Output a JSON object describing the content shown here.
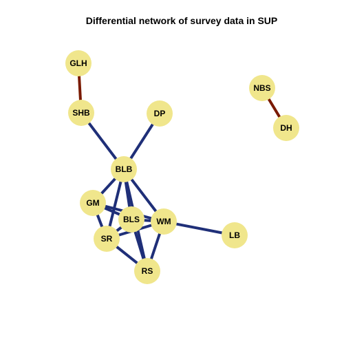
{
  "title": "Differential network of survey data in SUP",
  "colors": {
    "node_fill": "#F0E68C",
    "negative_edge": "#1F2F78",
    "positive_edge": "#7A1A00"
  },
  "nodes": [
    {
      "id": "GLH",
      "label": "GLH"
    },
    {
      "id": "SHB",
      "label": "SHB"
    },
    {
      "id": "DP",
      "label": "DP"
    },
    {
      "id": "NBS",
      "label": "NBS"
    },
    {
      "id": "DH",
      "label": "DH"
    },
    {
      "id": "BLB",
      "label": "BLB"
    },
    {
      "id": "GM",
      "label": "GM"
    },
    {
      "id": "BLS",
      "label": "BLS"
    },
    {
      "id": "WM",
      "label": "WM"
    },
    {
      "id": "LB",
      "label": "LB"
    },
    {
      "id": "SR",
      "label": "SR"
    },
    {
      "id": "RS",
      "label": "RS"
    }
  ],
  "edges": [
    {
      "source": "GLH",
      "target": "SHB",
      "color": "#7A1A00"
    },
    {
      "source": "NBS",
      "target": "DH",
      "color": "#7A1A00"
    },
    {
      "source": "SHB",
      "target": "BLB",
      "color": "#1F2F78"
    },
    {
      "source": "DP",
      "target": "BLB",
      "color": "#1F2F78"
    },
    {
      "source": "BLB",
      "target": "GM",
      "color": "#1F2F78"
    },
    {
      "source": "BLB",
      "target": "SR",
      "color": "#1F2F78"
    },
    {
      "source": "BLB",
      "target": "RS",
      "color": "#1F2F78"
    },
    {
      "source": "BLB",
      "target": "WM",
      "color": "#1F2F78"
    },
    {
      "source": "BLB",
      "target": "BLS",
      "color": "#1F2F78"
    },
    {
      "source": "GM",
      "target": "BLS",
      "color": "#1F2F78"
    },
    {
      "source": "GM",
      "target": "WM",
      "color": "#1F2F78"
    },
    {
      "source": "GM",
      "target": "SR",
      "color": "#1F2F78"
    },
    {
      "source": "BLS",
      "target": "WM",
      "color": "#1F2F78"
    },
    {
      "source": "BLS",
      "target": "SR",
      "color": "#1F2F78"
    },
    {
      "source": "BLS",
      "target": "RS",
      "color": "#1F2F78"
    },
    {
      "source": "SR",
      "target": "WM",
      "color": "#1F2F78"
    },
    {
      "source": "SR",
      "target": "RS",
      "color": "#1F2F78"
    },
    {
      "source": "WM",
      "target": "RS",
      "color": "#1F2F78"
    },
    {
      "source": "WM",
      "target": "LB",
      "color": "#1F2F78"
    }
  ]
}
